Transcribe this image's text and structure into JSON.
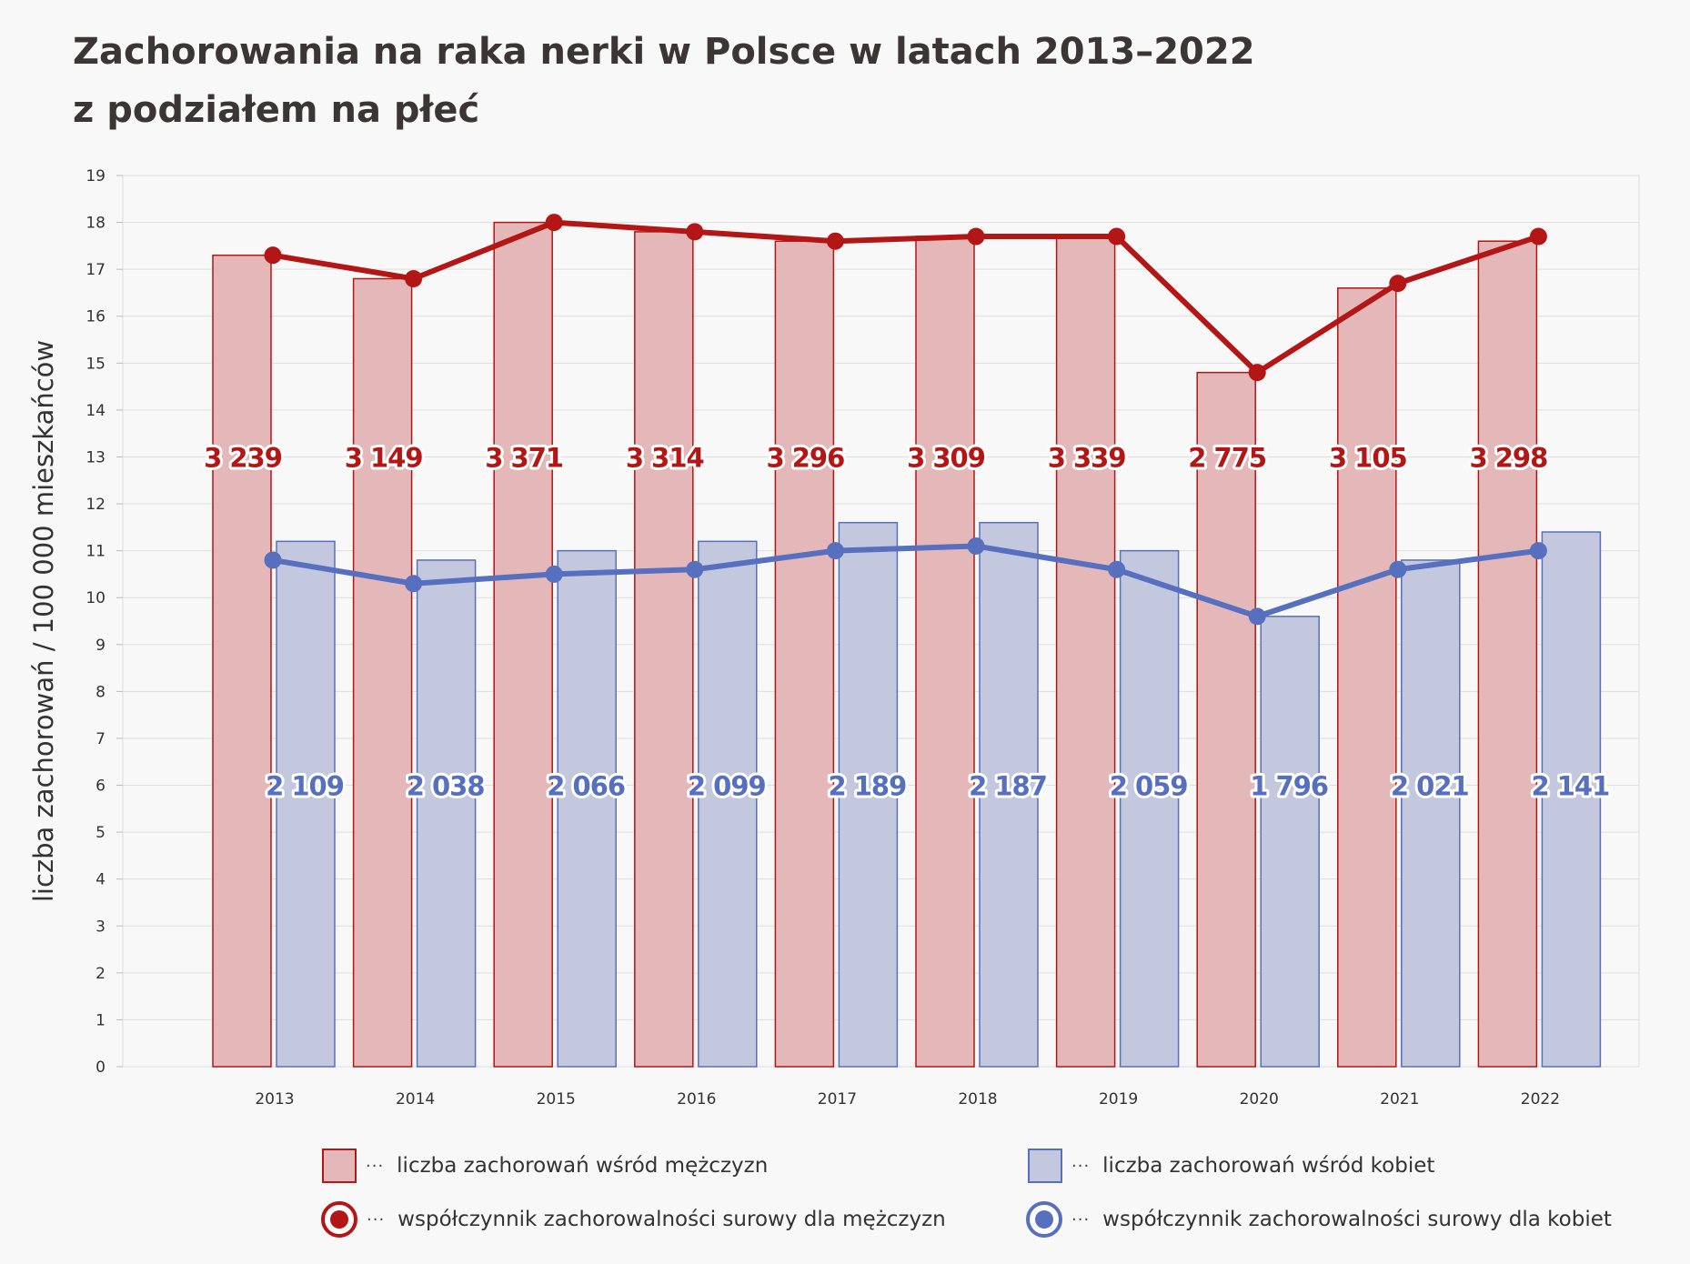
{
  "title": {
    "line1": "Zachorowania na raka nerki w Polsce w latach 2013–2022",
    "line2": "z podziałem na płeć"
  },
  "legend": {
    "men_bars": "liczba zachorowań wśród mężczyzn",
    "women_bars": "liczba zachorowań wśród kobiet",
    "men_line": "współczynnik zachorowalności surowy dla mężczyzn",
    "women_line": "współczynnik zachorowalności surowy dla kobiet",
    "leader": "···"
  },
  "colors": {
    "men": "#b41515",
    "men_fill": "#e4b8b8",
    "women": "#5670bf",
    "women_fill": "#c4c8de"
  },
  "chart_data": {
    "type": "bar",
    "ylabel": "liczba zachorowań / 100 000 mieszkańców",
    "ylim": [
      0,
      19
    ],
    "yticks": [
      0,
      1,
      2,
      3,
      4,
      5,
      6,
      7,
      8,
      9,
      10,
      11,
      12,
      13,
      14,
      15,
      16,
      17,
      18,
      19
    ],
    "grid": true,
    "categories": [
      "2013",
      "2014",
      "2015",
      "2016",
      "2017",
      "2018",
      "2019",
      "2020",
      "2021",
      "2022"
    ],
    "series": [
      {
        "name": "liczba zachorowań wśród mężczyzn",
        "kind": "bar",
        "values": [
          17.3,
          16.8,
          18.0,
          17.8,
          17.6,
          17.7,
          17.7,
          14.8,
          16.6,
          17.6
        ],
        "labels": [
          "3 239",
          "3 149",
          "3 371",
          "3 314",
          "3 296",
          "3 309",
          "3 339",
          "2 775",
          "3 105",
          "3 298"
        ]
      },
      {
        "name": "liczba zachorowań wśród kobiet",
        "kind": "bar",
        "values": [
          11.2,
          10.8,
          11.0,
          11.2,
          11.6,
          11.6,
          11.0,
          9.6,
          10.8,
          11.4
        ],
        "labels": [
          "2 109",
          "2 038",
          "2 066",
          "2 099",
          "2 189",
          "2 187",
          "2 059",
          "1 796",
          "2 021",
          "2 141"
        ]
      },
      {
        "name": "współczynnik zachorowalności surowy dla mężczyzn",
        "kind": "line",
        "values": [
          17.3,
          16.8,
          18.0,
          17.8,
          17.6,
          17.7,
          17.7,
          14.8,
          16.7,
          17.7
        ]
      },
      {
        "name": "współczynnik zachorowalności surowy dla kobiet",
        "kind": "line",
        "values": [
          10.8,
          10.3,
          10.5,
          10.6,
          11.0,
          11.1,
          10.6,
          9.6,
          10.6,
          11.0
        ]
      }
    ],
    "men_label_level": 13,
    "women_label_level": 6
  }
}
